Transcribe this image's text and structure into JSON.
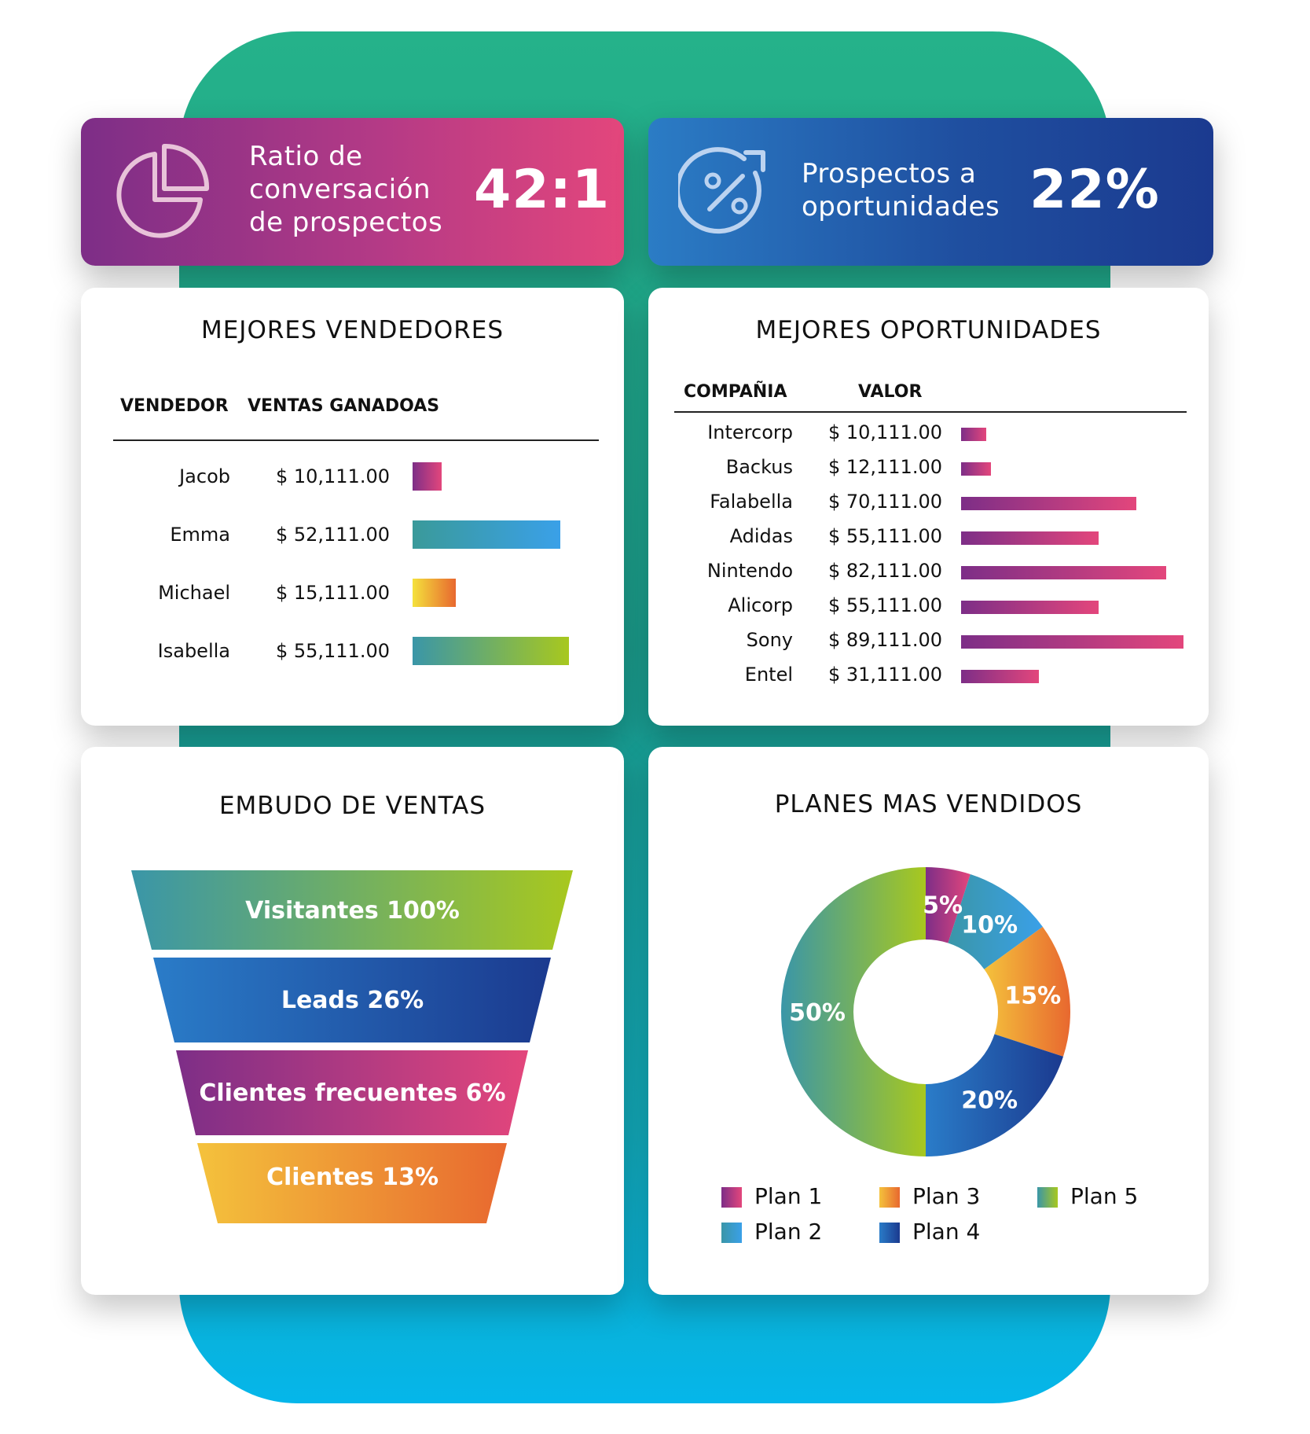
{
  "kpis": {
    "ratio": {
      "label_lines": [
        "Ratio de",
        "conversación",
        "de prospectos"
      ],
      "value": "42:1",
      "icon": "pie-chart-icon"
    },
    "prospects": {
      "label_lines": [
        "Prospectos a",
        "oportunidades"
      ],
      "value": "22%",
      "icon": "percent-arrow-icon"
    }
  },
  "sellers": {
    "title": "MEJORES VENDEDORES",
    "headers": {
      "seller": "VENDEDOR",
      "sales": "VENTAS GANADOAS"
    },
    "rows": [
      {
        "name": "Jacob",
        "value": "$ 10,111.00",
        "amount": 10111,
        "colors": [
          "#7d2e87",
          "#e3467c"
        ]
      },
      {
        "name": "Emma",
        "value": "$ 52,111.00",
        "amount": 52111,
        "colors": [
          "#3a9a9a",
          "#3aa0e8"
        ]
      },
      {
        "name": "Michael",
        "value": "$ 15,111.00",
        "amount": 15111,
        "colors": [
          "#f4e13c",
          "#e8682f"
        ]
      },
      {
        "name": "Isabella",
        "value": "$ 55,111.00",
        "amount": 55111,
        "colors": [
          "#3a96a8",
          "#a8c81e"
        ]
      }
    ]
  },
  "opportunities": {
    "title": "MEJORES OPORTUNIDADES",
    "headers": {
      "company": "COMPAÑIA",
      "value": "VALOR"
    },
    "rows": [
      {
        "company": "Intercorp",
        "value": "$ 10,111.00",
        "amount": 10111
      },
      {
        "company": "Backus",
        "value": "$ 12,111.00",
        "amount": 12111
      },
      {
        "company": "Falabella",
        "value": "$ 70,111.00",
        "amount": 70111
      },
      {
        "company": "Adidas",
        "value": "$ 55,111.00",
        "amount": 55111
      },
      {
        "company": "Nintendo",
        "value": "$ 82,111.00",
        "amount": 82111
      },
      {
        "company": "Alicorp",
        "value": "$ 55,111.00",
        "amount": 55111
      },
      {
        "company": "Sony",
        "value": "$ 89,111.00",
        "amount": 89111
      },
      {
        "company": "Entel",
        "value": "$ 31,111.00",
        "amount": 31111
      }
    ]
  },
  "funnel": {
    "title": "EMBUDO DE VENTAS",
    "stages": [
      {
        "label": "Visitantes 100%",
        "colors": [
          "#3a96a8",
          "#a8c81e"
        ]
      },
      {
        "label": "Leads 26%",
        "colors": [
          "#2a7cc8",
          "#1b3a8f"
        ]
      },
      {
        "label": "Clientes frecuentes 6%",
        "colors": [
          "#7d2e87",
          "#e3467c"
        ]
      },
      {
        "label": "Clientes 13%",
        "colors": [
          "#f4c23c",
          "#e8682f"
        ]
      }
    ]
  },
  "plans": {
    "title": "PLANES MAS VENDIDOS",
    "legend": [
      {
        "label": "Plan 1",
        "colors": [
          "#7d2e87",
          "#e3467c"
        ]
      },
      {
        "label": "Plan 2",
        "colors": [
          "#3a96a8",
          "#3aa0e8"
        ]
      },
      {
        "label": "Plan 3",
        "colors": [
          "#f4c23c",
          "#e8682f"
        ]
      },
      {
        "label": "Plan 4",
        "colors": [
          "#2a7cc8",
          "#1b3a8f"
        ]
      },
      {
        "label": "Plan 5",
        "colors": [
          "#3a96a8",
          "#a8c81e"
        ]
      }
    ]
  },
  "chart_data": {
    "type": "pie",
    "title": "PLANES MAS VENDIDOS",
    "categories": [
      "Plan 1",
      "Plan 2",
      "Plan 3",
      "Plan 4",
      "Plan 5"
    ],
    "values": [
      5,
      10,
      15,
      20,
      50
    ],
    "labels": [
      "5%",
      "10%",
      "15%",
      "20%",
      "50%"
    ],
    "donut": true,
    "legend": "bottom"
  }
}
